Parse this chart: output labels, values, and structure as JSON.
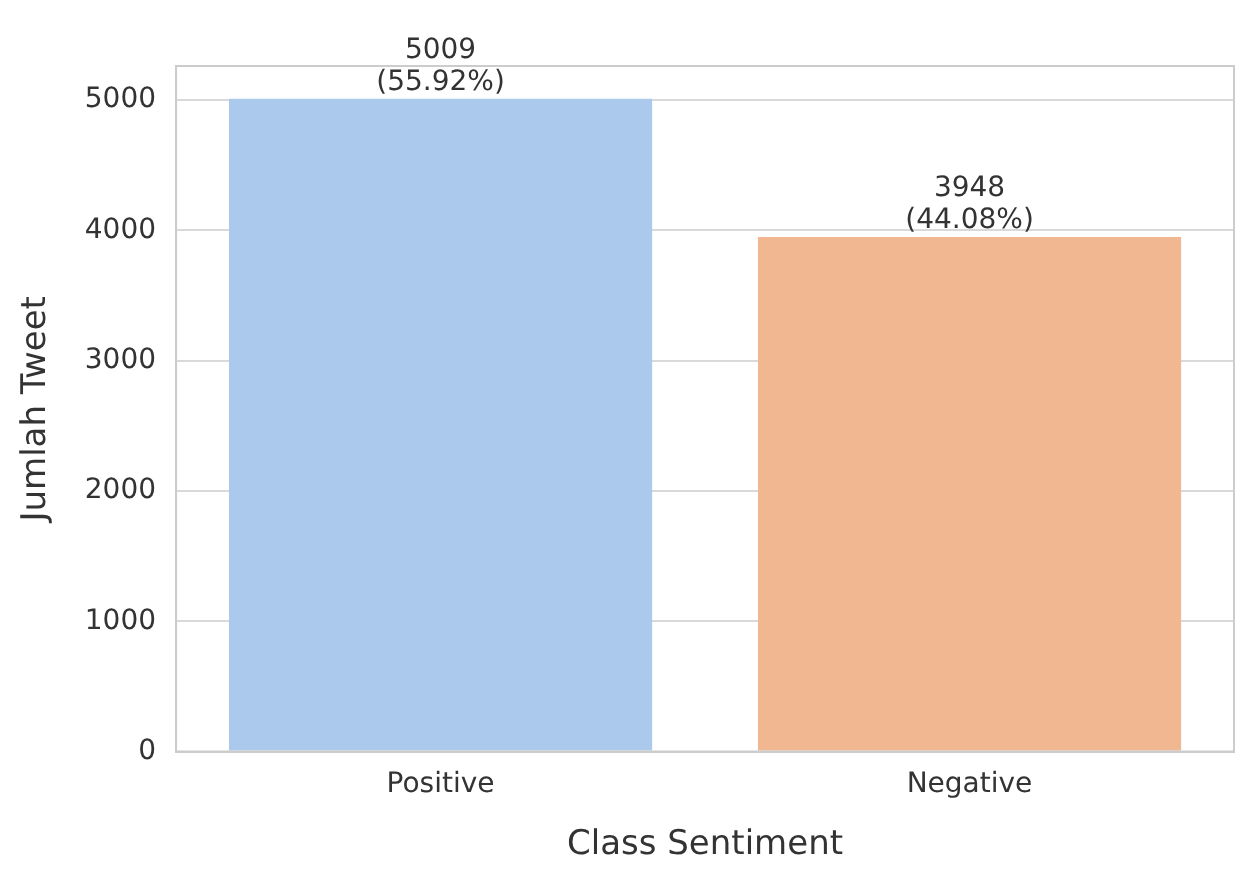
{
  "chart_data": {
    "type": "bar",
    "xlabel": "Class Sentiment",
    "ylabel": "Jumlah Tweet",
    "categories": [
      "Positive",
      "Negative"
    ],
    "values": [
      5009,
      3948
    ],
    "colors": [
      "#abc9ec",
      "#f0b791"
    ],
    "value_labels": [
      "5009\n(55.92%)",
      "3948\n(44.08%)"
    ],
    "ylim": [
      0,
      5260
    ],
    "yticks": [
      0,
      1000,
      2000,
      3000,
      4000,
      5000
    ],
    "grid": "y",
    "legend": false
  }
}
